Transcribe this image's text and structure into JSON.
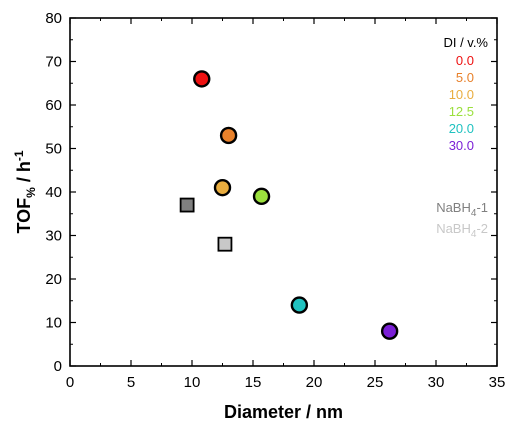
{
  "chart_data": {
    "type": "scatter",
    "title": "",
    "xlabel": "Diameter / nm",
    "ylabel": "TOF% / h-1",
    "ylabel_parts": {
      "main": "TOF",
      "sub": "%",
      "slash": " / h",
      "sup": "-1"
    },
    "xlim": [
      0,
      35
    ],
    "ylim": [
      0,
      80
    ],
    "xticks": [
      0,
      5,
      10,
      15,
      20,
      25,
      30,
      35
    ],
    "yticks": [
      0,
      10,
      20,
      30,
      40,
      50,
      60,
      70,
      80
    ],
    "legend_title": "DI / v.%",
    "series": [
      {
        "name": "0.0",
        "marker": "circle",
        "color": "#ee1111",
        "x": [
          10.8
        ],
        "y": [
          66
        ]
      },
      {
        "name": "5.0",
        "marker": "circle",
        "color": "#e8812b",
        "x": [
          13.0
        ],
        "y": [
          53
        ]
      },
      {
        "name": "10.0",
        "marker": "circle",
        "color": "#e9ad3f",
        "x": [
          12.5
        ],
        "y": [
          41
        ]
      },
      {
        "name": "12.5",
        "marker": "circle",
        "color": "#9be03d",
        "x": [
          15.7
        ],
        "y": [
          39
        ]
      },
      {
        "name": "20.0",
        "marker": "circle",
        "color": "#20c2c0",
        "x": [
          18.8
        ],
        "y": [
          14
        ]
      },
      {
        "name": "30.0",
        "marker": "circle",
        "color": "#7b1fd6",
        "x": [
          26.2
        ],
        "y": [
          8
        ]
      },
      {
        "name": "NaBH4-1",
        "label_main": "NaBH",
        "label_sub": "4",
        "label_suffix": "-1",
        "marker": "square",
        "color": "#808080",
        "x": [
          9.6
        ],
        "y": [
          37
        ]
      },
      {
        "name": "NaBH4-2",
        "label_main": "NaBH",
        "label_sub": "4",
        "label_suffix": "-2",
        "marker": "square",
        "color": "#c8c8c8",
        "x": [
          12.7
        ],
        "y": [
          28
        ]
      }
    ]
  }
}
